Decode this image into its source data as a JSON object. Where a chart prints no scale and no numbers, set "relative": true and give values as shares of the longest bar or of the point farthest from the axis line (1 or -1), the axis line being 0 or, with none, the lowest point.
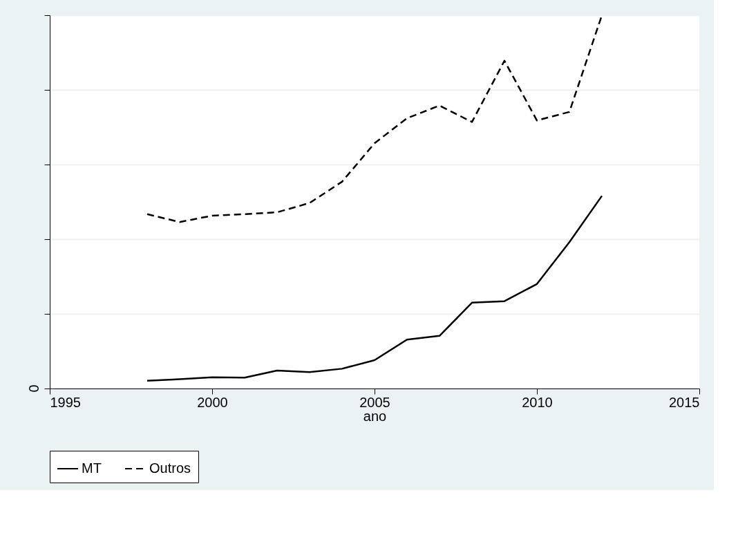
{
  "chart_data": {
    "type": "line",
    "xlabel": "ano",
    "x": [
      1998,
      1999,
      2000,
      2001,
      2002,
      2003,
      2004,
      2005,
      2006,
      2007,
      2008,
      2009,
      2010,
      2011,
      2012
    ],
    "xlim": [
      1995,
      2015
    ],
    "xticks": [
      1995,
      2000,
      2005,
      2010,
      2015
    ],
    "relative": true,
    "grid": "y",
    "legend": "bottom",
    "marker": "none",
    "annotations": [
      "0"
    ],
    "series": [
      {
        "name": "MT",
        "color": "#000000",
        "line_style": "solid",
        "values": [
          0.021,
          0.025,
          0.03,
          0.029,
          0.048,
          0.044,
          0.053,
          0.076,
          0.131,
          0.141,
          0.23,
          0.234,
          0.28,
          0.392,
          0.516
        ]
      },
      {
        "name": "Outros",
        "color": "#000000",
        "line_style": "dashed",
        "values": [
          0.467,
          0.446,
          0.463,
          0.467,
          0.472,
          0.497,
          0.554,
          0.657,
          0.724,
          0.758,
          0.714,
          0.878,
          0.718,
          0.741,
          1
        ]
      }
    ]
  }
}
